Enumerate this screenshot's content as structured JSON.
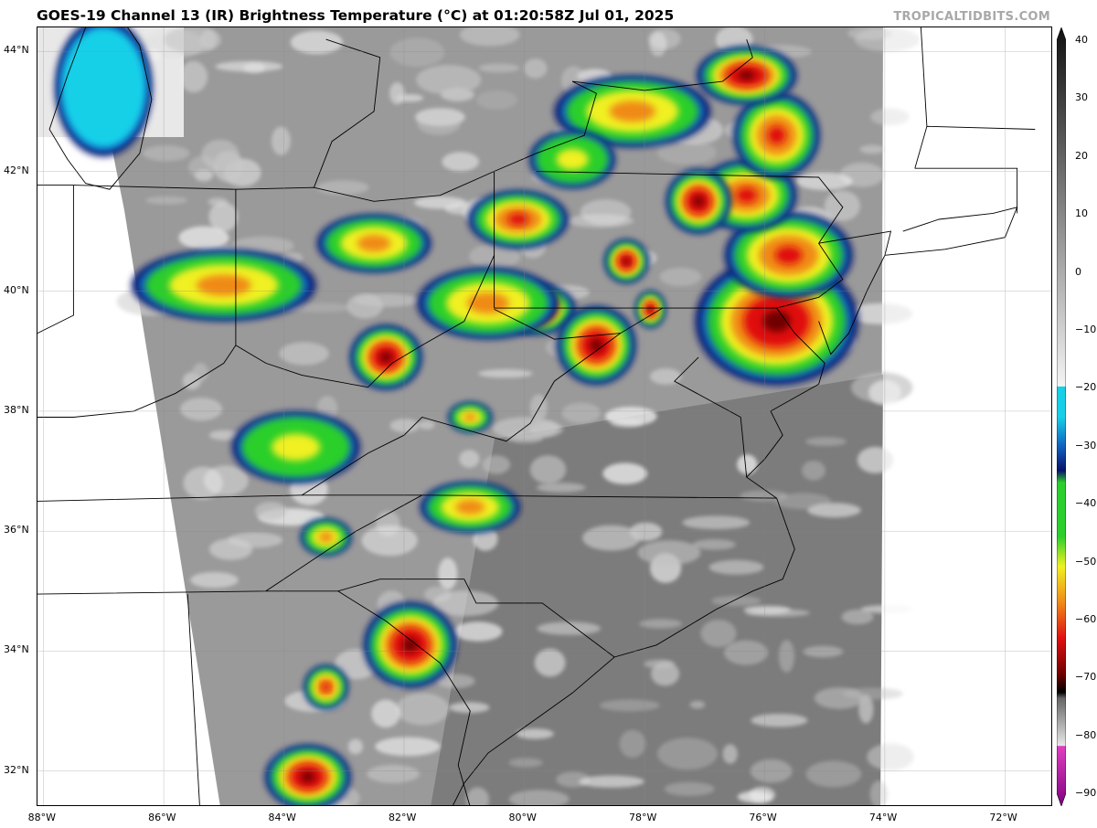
{
  "title": "GOES-19 Channel 13 (IR) Brightness Temperature (°C) at 01:20:58Z Jul 01, 2025",
  "credit": "TROPICALTIDBITS.COM",
  "map": {
    "lon_range": [
      -88.1,
      -71.2
    ],
    "lat_range": [
      31.4,
      44.4
    ],
    "lat_ticks": [
      {
        "value": 44,
        "label": "44°N"
      },
      {
        "value": 42,
        "label": "42°N"
      },
      {
        "value": 40,
        "label": "40°N"
      },
      {
        "value": 38,
        "label": "38°N"
      },
      {
        "value": 36,
        "label": "36°N"
      },
      {
        "value": 34,
        "label": "34°N"
      },
      {
        "value": 32,
        "label": "32°N"
      }
    ],
    "lon_ticks": [
      {
        "value": -88,
        "label": "88°W"
      },
      {
        "value": -86,
        "label": "86°W"
      },
      {
        "value": -84,
        "label": "84°W"
      },
      {
        "value": -82,
        "label": "82°W"
      },
      {
        "value": -80,
        "label": "80°W"
      },
      {
        "value": -78,
        "label": "78°W"
      },
      {
        "value": -76,
        "label": "76°W"
      },
      {
        "value": -74,
        "label": "74°W"
      },
      {
        "value": -72,
        "label": "72°W"
      }
    ],
    "storm_cells": [
      {
        "lon": -75.8,
        "lat": 39.5,
        "rlon": 1.15,
        "rlat": 0.9,
        "peak": "red"
      },
      {
        "lon": -75.6,
        "lat": 40.6,
        "rlon": 0.9,
        "rlat": 0.6,
        "peak": "orange"
      },
      {
        "lon": -76.3,
        "lat": 41.6,
        "rlon": 0.7,
        "rlat": 0.5,
        "peak": "orange"
      },
      {
        "lon": -77.1,
        "lat": 41.5,
        "rlon": 0.45,
        "rlat": 0.45,
        "peak": "red"
      },
      {
        "lon": -75.8,
        "lat": 42.6,
        "rlon": 0.6,
        "rlat": 0.6,
        "peak": "orange"
      },
      {
        "lon": -76.3,
        "lat": 43.6,
        "rlon": 0.7,
        "rlat": 0.4,
        "peak": "red"
      },
      {
        "lon": -78.2,
        "lat": 43.0,
        "rlon": 1.1,
        "rlat": 0.5,
        "peak": "yellow"
      },
      {
        "lon": -79.8,
        "lat": 39.7,
        "rlon": 0.55,
        "rlat": 0.35,
        "peak": "red"
      },
      {
        "lon": -78.8,
        "lat": 39.1,
        "rlon": 0.55,
        "rlat": 0.55,
        "peak": "red"
      },
      {
        "lon": -78.3,
        "lat": 40.5,
        "rlon": 0.3,
        "rlat": 0.3,
        "peak": "red"
      },
      {
        "lon": -77.9,
        "lat": 39.7,
        "rlon": 0.2,
        "rlat": 0.25,
        "peak": "red"
      },
      {
        "lon": -80.1,
        "lat": 41.2,
        "rlon": 0.7,
        "rlat": 0.4,
        "peak": "orange"
      },
      {
        "lon": -82.3,
        "lat": 38.9,
        "rlon": 0.5,
        "rlat": 0.45,
        "peak": "red"
      },
      {
        "lon": -80.6,
        "lat": 39.8,
        "rlon": 1.0,
        "rlat": 0.5,
        "peak": "yellow"
      },
      {
        "lon": -85.0,
        "lat": 40.1,
        "rlon": 1.3,
        "rlat": 0.5,
        "peak": "yellow"
      },
      {
        "lon": -82.5,
        "lat": 40.8,
        "rlon": 0.8,
        "rlat": 0.4,
        "peak": "yellow"
      },
      {
        "lon": -81.9,
        "lat": 34.1,
        "rlon": 0.65,
        "rlat": 0.6,
        "peak": "red"
      },
      {
        "lon": -83.6,
        "lat": 31.9,
        "rlon": 0.6,
        "rlat": 0.45,
        "peak": "red"
      },
      {
        "lon": -83.3,
        "lat": 33.4,
        "rlon": 0.3,
        "rlat": 0.3,
        "peak": "orange"
      },
      {
        "lon": -80.9,
        "lat": 36.4,
        "rlon": 0.7,
        "rlat": 0.35,
        "peak": "yellow"
      },
      {
        "lon": -83.8,
        "lat": 37.4,
        "rlon": 0.9,
        "rlat": 0.5,
        "peak": "green"
      },
      {
        "lon": -83.3,
        "lat": 35.9,
        "rlon": 0.35,
        "rlat": 0.25,
        "peak": "yellow"
      },
      {
        "lon": -80.9,
        "lat": 37.9,
        "rlon": 0.3,
        "rlat": 0.2,
        "peak": "yellow"
      },
      {
        "lon": -87.0,
        "lat": 43.4,
        "rlon": 0.7,
        "rlat": 1.0,
        "peak": "cyan"
      },
      {
        "lon": -79.2,
        "lat": 42.2,
        "rlon": 0.6,
        "rlat": 0.4,
        "peak": "green"
      }
    ]
  },
  "colorbar": {
    "range": [
      -90,
      40
    ],
    "ticks": [
      {
        "value": 40,
        "label": "40"
      },
      {
        "value": 30,
        "label": "30"
      },
      {
        "value": 20,
        "label": "20"
      },
      {
        "value": 10,
        "label": "10"
      },
      {
        "value": 0,
        "label": "0"
      },
      {
        "value": -10,
        "label": "−10"
      },
      {
        "value": -20,
        "label": "−20"
      },
      {
        "value": -30,
        "label": "−30"
      },
      {
        "value": -40,
        "label": "−40"
      },
      {
        "value": -50,
        "label": "−50"
      },
      {
        "value": -60,
        "label": "−60"
      },
      {
        "value": -70,
        "label": "−70"
      },
      {
        "value": -80,
        "label": "−80"
      },
      {
        "value": -90,
        "label": "−90"
      }
    ],
    "colors": {
      "gray_scale_top": "#111111",
      "gray_scale_bottom": "#f4f4f4",
      "cyan": "#17d0e8",
      "blue": "#1060c0",
      "navy": "#08126a",
      "green": "#2ccf2c",
      "yellow": "#f0f020",
      "orange": "#f08a18",
      "red": "#e01010",
      "dark_red": "#700000",
      "black": "#000000",
      "magenta": "#e040c0",
      "purple": "#800080"
    }
  }
}
